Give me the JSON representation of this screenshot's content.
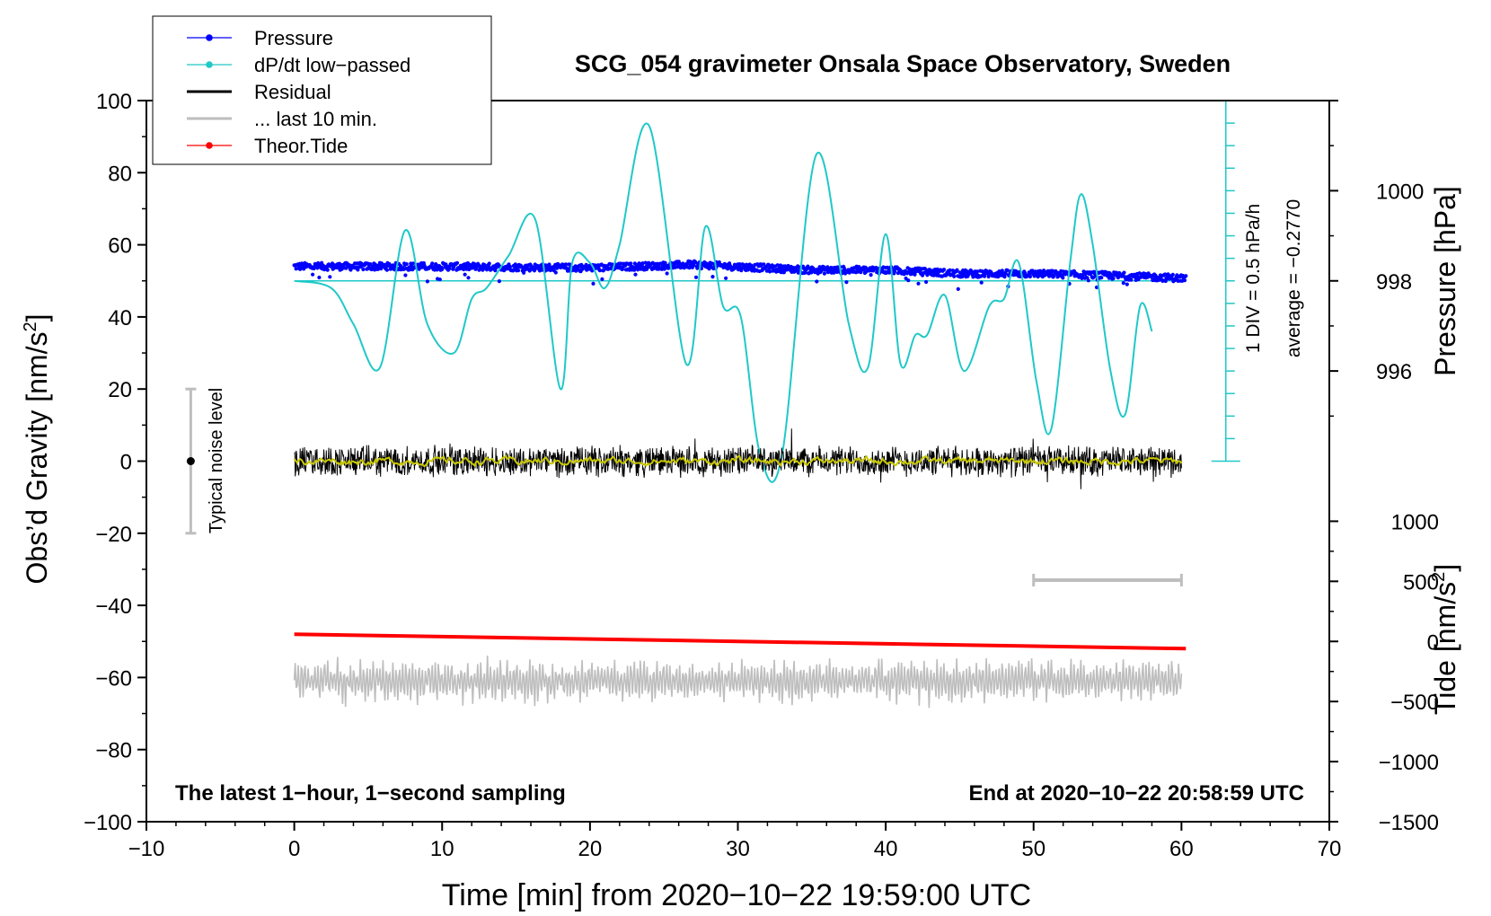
{
  "chart_data": {
    "type": "line",
    "title": "SCG_054 gravimeter Onsala Space Observatory, Sweden",
    "xlabel": "Time [min] from 2020−10−22 19:59:00 UTC",
    "ylabel_left": "Obs’d Gravity [nm/s",
    "ylabel_left_sup": "2",
    "ylabel_left_tail": "]",
    "ylabel_pressure": "Pressure [hPa]",
    "ylabel_tide": "Tide [nm/s",
    "ylabel_tide_sup": "2",
    "ylabel_tide_tail": "]",
    "xlim": [
      -10,
      70
    ],
    "ylim": [
      -100,
      100
    ],
    "x_ticks": [
      "−10",
      "0",
      "10",
      "20",
      "30",
      "40",
      "50",
      "60",
      "70"
    ],
    "x_tick_values": [
      -10,
      0,
      10,
      20,
      30,
      40,
      50,
      60,
      70
    ],
    "y_ticks": [
      "100",
      "80",
      "60",
      "40",
      "20",
      "0",
      "−20",
      "−40",
      "−60",
      "−80",
      "−100"
    ],
    "y_tick_values": [
      100,
      80,
      60,
      40,
      20,
      0,
      -20,
      -40,
      -60,
      -80,
      -100
    ],
    "pressure_axis": {
      "ticks": [
        "1000",
        "998",
        "996"
      ],
      "tick_values": [
        1000,
        998,
        996
      ],
      "map": {
        "value_a": 998,
        "gravity_a": 50,
        "value_b": 1000,
        "gravity_b": 75
      }
    },
    "tide_axis": {
      "ticks": [
        "1000",
        "500",
        "0",
        "−500",
        "−1000",
        "−1500"
      ],
      "tick_values": [
        1000,
        500,
        0,
        -500,
        -1000,
        -1500
      ],
      "map": {
        "value_a": 0,
        "gravity_a": -50,
        "value_b": 1000,
        "gravity_b": -16.67
      }
    },
    "legend": {
      "position": "top-left",
      "entries": [
        {
          "label": "Pressure",
          "color": "#0000ff",
          "marker": true
        },
        {
          "label": "dP/dt low−passed",
          "color": "#20c8c8",
          "marker": true
        },
        {
          "label": "Residual",
          "color": "#000000",
          "marker": false
        },
        {
          "label": "... last 10 min.",
          "color": "#bebebe",
          "marker": false
        },
        {
          "label": "Theor.Tide",
          "color": "#ff0000",
          "marker": true
        }
      ]
    },
    "annotations": {
      "div_label": "1 DIV = 0.5 hPa/h",
      "average_label": "average = −0.2770",
      "noise_label": "Typical noise level",
      "noise_range": [
        -20,
        20
      ],
      "noise_x": -7,
      "bottom_left": "The latest 1−hour, 1−second sampling",
      "bottom_right": "End at 2020−10−22 20:58:59 UTC",
      "scale_bar_x": [
        50,
        60
      ],
      "scale_bar_y": -33,
      "dpdt_axis_x": 63,
      "dpdt_axis_range": [
        0,
        100
      ],
      "dpdt_baseline_y": 50
    },
    "series": [
      {
        "name": "Pressure",
        "color": "#0000ff",
        "style": "dots",
        "x_range": [
          0,
          60.3
        ],
        "anchors": [
          [
            0,
            54
          ],
          [
            10,
            54
          ],
          [
            20,
            53.6
          ],
          [
            27,
            54.5
          ],
          [
            35,
            53
          ],
          [
            40,
            53
          ],
          [
            45,
            52
          ],
          [
            50,
            52
          ],
          [
            55,
            51.5
          ],
          [
            60.3,
            50.7
          ]
        ],
        "noise": 1.0
      },
      {
        "name": "dP/dt low−passed",
        "color": "#20c8c8",
        "style": "smooth",
        "x": [
          0,
          2.5,
          4,
          5.8,
          7.5,
          9,
          10.8,
          12,
          13,
          14.5,
          16.3,
          18,
          18.8,
          20,
          21,
          22,
          24,
          26.5,
          27.8,
          29,
          30.2,
          31.5,
          33,
          35.3,
          37.5,
          38.8,
          40,
          41,
          42,
          42.8,
          44,
          45.3,
          47,
          48,
          49,
          50.2,
          51.2,
          52.5,
          53.2,
          54,
          55.2,
          56.2,
          57.2,
          58
        ],
        "y": [
          50,
          48,
          38,
          26,
          64,
          38,
          30,
          45,
          48,
          57,
          67,
          20,
          55,
          55,
          48,
          60,
          93,
          27,
          65,
          43,
          40,
          2,
          2,
          85,
          38,
          26,
          63,
          27,
          35,
          35,
          46,
          25,
          43,
          45,
          55,
          22,
          9,
          56,
          74,
          60,
          25,
          13,
          43,
          36
        ]
      },
      {
        "name": "Residual",
        "color": "#000000",
        "style": "noise",
        "x_range": [
          0,
          60
        ],
        "amplitude": 4,
        "mean": 0
      },
      {
        "name": "smoothed residual",
        "color": "#c8c800",
        "style": "noise",
        "x_range": [
          0,
          60
        ],
        "amplitude": 1.2,
        "mean": 0
      },
      {
        "name": "Theor.Tide",
        "color": "#ff0000",
        "style": "line",
        "x": [
          0,
          60.3
        ],
        "y": [
          -48,
          -52
        ]
      },
      {
        "name": "... last 10 min.",
        "color": "#bebebe",
        "style": "oscillation",
        "x_range": [
          0,
          60
        ],
        "center": -61,
        "amplitude": 5
      }
    ]
  }
}
